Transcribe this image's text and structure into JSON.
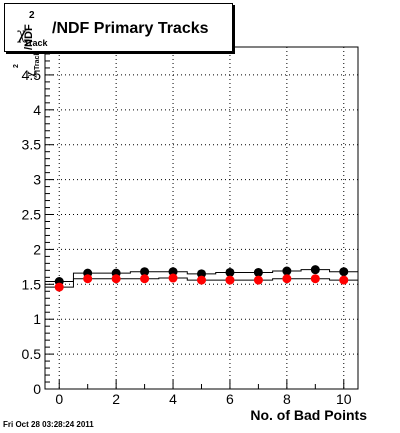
{
  "chart_data": {
    "type": "scatter",
    "title": {
      "symbol": "χ",
      "superscript": "2",
      "subscript": "Track",
      "text": "/NDF Primary Tracks"
    },
    "ylabel": {
      "symbol": "χ",
      "superscript": "2",
      "subscript": "Track",
      "text": "/NDF"
    },
    "xlabel": "No. of Bad Points",
    "xlim": [
      -0.5,
      10.5
    ],
    "ylim": [
      0,
      4.9
    ],
    "x_ticks": [
      0,
      2,
      4,
      6,
      8,
      10
    ],
    "y_ticks": [
      "0",
      "0.5",
      "1",
      "1.5",
      "2",
      "2.5",
      "3",
      "3.5",
      "4",
      "4.5"
    ],
    "grid": true,
    "x": [
      0,
      1,
      2,
      3,
      4,
      5,
      6,
      7,
      8,
      9,
      10
    ],
    "series": [
      {
        "color": "#000000",
        "values": [
          1.54,
          1.66,
          1.66,
          1.68,
          1.68,
          1.65,
          1.67,
          1.67,
          1.69,
          1.71,
          1.68
        ]
      },
      {
        "color": "#ff0000",
        "values": [
          1.46,
          1.58,
          1.58,
          1.58,
          1.59,
          1.56,
          1.56,
          1.56,
          1.58,
          1.58,
          1.56
        ]
      }
    ]
  },
  "footer": "Fri Oct 28 03:28:24 2011"
}
